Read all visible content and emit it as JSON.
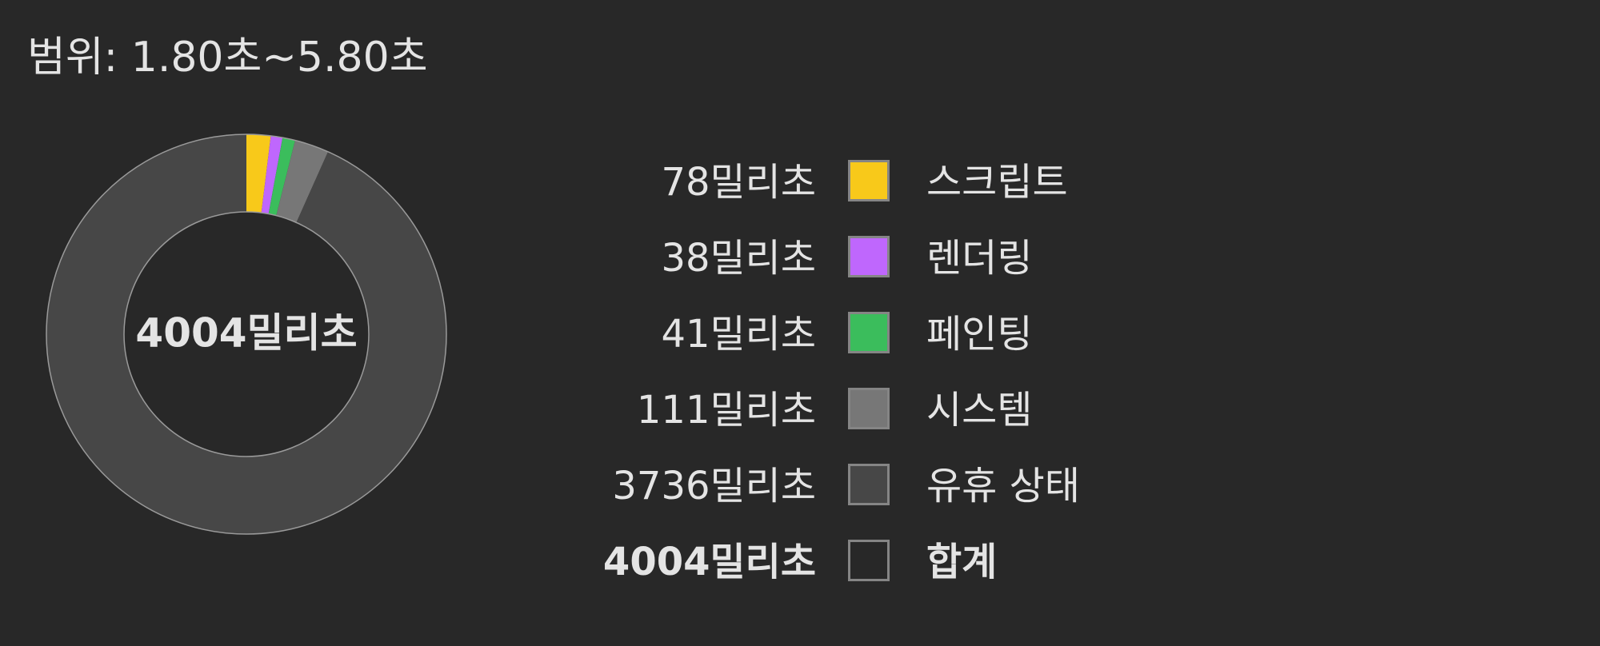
{
  "range_label": "범위: 1.80초~5.80초",
  "chart_data": {
    "type": "pie",
    "variant": "donut",
    "center_label": "4004밀리초",
    "slices": [
      {
        "name": "스크립트",
        "value": 78,
        "value_label": "78밀리초",
        "color": "#f8c91a"
      },
      {
        "name": "렌더링",
        "value": 38,
        "value_label": "38밀리초",
        "color": "#bf67fd"
      },
      {
        "name": "페인팅",
        "value": 41,
        "value_label": "41밀리초",
        "color": "#3bbd5c"
      },
      {
        "name": "시스템",
        "value": 111,
        "value_label": "111밀리초",
        "color": "#777777"
      },
      {
        "name": "유휴 상태",
        "value": 3736,
        "value_label": "3736밀리초",
        "color": "#474747"
      }
    ],
    "total": {
      "name": "합계",
      "value": 4004,
      "value_label": "4004밀리초",
      "color": "#282828"
    }
  }
}
